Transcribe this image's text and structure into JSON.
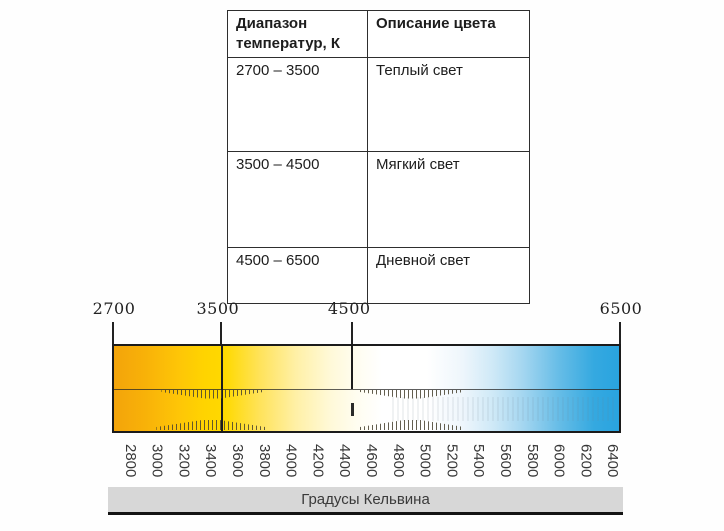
{
  "table": {
    "headers": [
      "Диапазон температур, К",
      "Описание цвета"
    ],
    "rows": [
      {
        "range": "2700 – 3500",
        "description": "Теплый свет"
      },
      {
        "range": "3500 – 4500",
        "description": "Мягкий свет"
      },
      {
        "range": "4500 – 6500",
        "description": "Дневной свет"
      }
    ]
  },
  "scale": {
    "range_min": 2700,
    "range_max": 6500,
    "major_labels": [
      "2700",
      "3500",
      "4500",
      "6500"
    ],
    "minor_labels": [
      "2800",
      "3000",
      "3200",
      "3400",
      "3600",
      "3800",
      "4000",
      "4200",
      "4400",
      "4600",
      "4800",
      "5000",
      "5200",
      "5400",
      "5600",
      "5800",
      "6000",
      "6200",
      "6400"
    ],
    "axis_title": "Градусы Кельвина",
    "colors": {
      "warm_orange": "#F3A40B",
      "yellow": "#FFD900",
      "neutral_white": "#FFFFFF",
      "cool_blue": "#29A3DF"
    }
  }
}
